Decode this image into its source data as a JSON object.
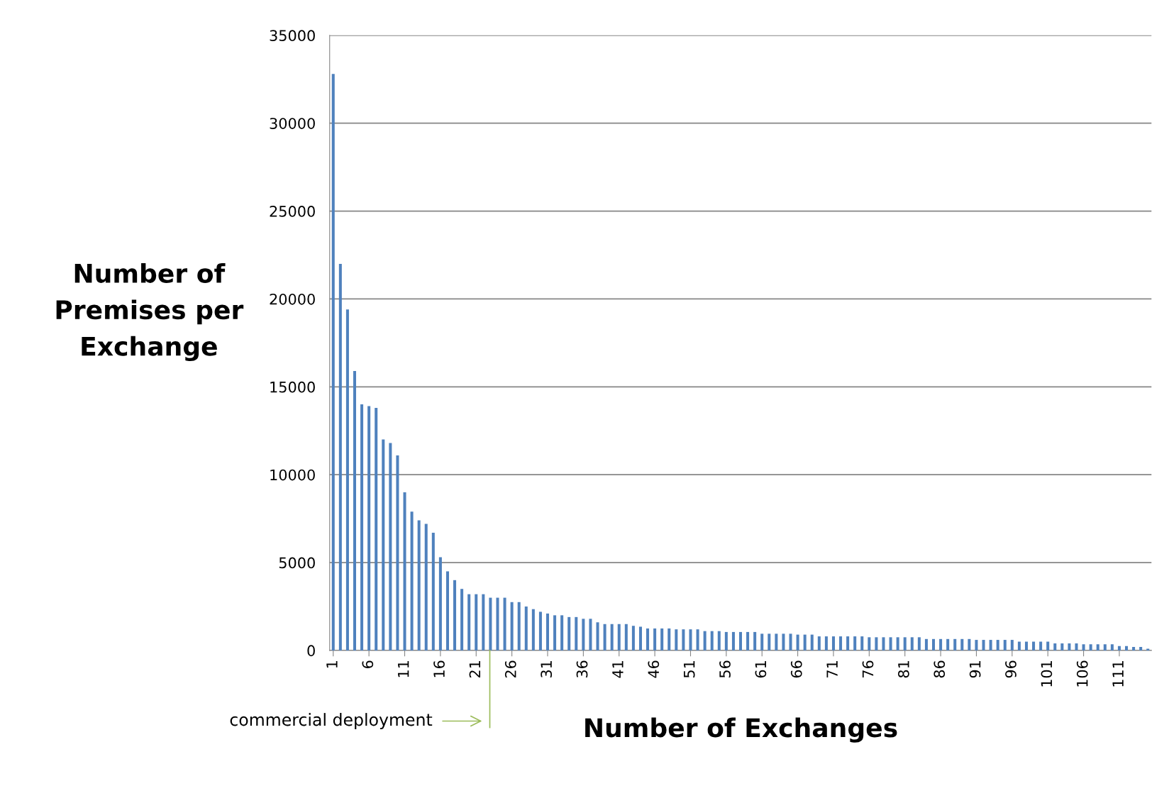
{
  "chart_data": {
    "type": "bar",
    "xlabel": "Number of Exchanges",
    "ylabel": "Number of\nPremises per\nExchange",
    "x": [
      1,
      2,
      3,
      4,
      5,
      6,
      7,
      8,
      9,
      10,
      11,
      12,
      13,
      14,
      15,
      16,
      17,
      18,
      19,
      20,
      21,
      22,
      23,
      24,
      25,
      26,
      27,
      28,
      29,
      30,
      31,
      32,
      33,
      34,
      35,
      36,
      37,
      38,
      39,
      40,
      41,
      42,
      43,
      44,
      45,
      46,
      47,
      48,
      49,
      50,
      51,
      52,
      53,
      54,
      55,
      56,
      57,
      58,
      59,
      60,
      61,
      62,
      63,
      64,
      65,
      66,
      67,
      68,
      69,
      70,
      71,
      72,
      73,
      74,
      75,
      76,
      77,
      78,
      79,
      80,
      81,
      82,
      83,
      84,
      85,
      86,
      87,
      88,
      89,
      90,
      91,
      92,
      93,
      94,
      95,
      96,
      97,
      98,
      99,
      100,
      101,
      102,
      103,
      104,
      105,
      106,
      107,
      108,
      109,
      110,
      111,
      112,
      113,
      114,
      115
    ],
    "xlim": [
      0.5,
      115.5
    ],
    "xticks": [
      1,
      6,
      11,
      16,
      21,
      26,
      31,
      36,
      41,
      46,
      51,
      56,
      61,
      66,
      71,
      76,
      81,
      86,
      91,
      96,
      101,
      106,
      111
    ],
    "values": [
      32800,
      22000,
      19400,
      15900,
      14000,
      13900,
      13800,
      12000,
      11800,
      11100,
      9000,
      7900,
      7400,
      7200,
      6700,
      5300,
      4500,
      4000,
      3500,
      3200,
      3200,
      3200,
      3000,
      3000,
      3000,
      2750,
      2750,
      2500,
      2350,
      2200,
      2100,
      2000,
      2000,
      1900,
      1900,
      1800,
      1800,
      1600,
      1500,
      1500,
      1500,
      1500,
      1400,
      1350,
      1250,
      1250,
      1250,
      1250,
      1200,
      1200,
      1200,
      1200,
      1100,
      1100,
      1100,
      1050,
      1050,
      1050,
      1050,
      1050,
      950,
      950,
      950,
      950,
      950,
      900,
      900,
      900,
      800,
      800,
      800,
      800,
      800,
      800,
      800,
      750,
      750,
      750,
      750,
      750,
      750,
      750,
      750,
      650,
      650,
      650,
      650,
      650,
      650,
      650,
      600,
      600,
      600,
      600,
      600,
      600,
      500,
      500,
      500,
      500,
      500,
      400,
      400,
      400,
      400,
      350,
      350,
      350,
      350,
      350,
      250,
      250,
      200,
      200,
      100
    ],
    "color": "#4f81bd",
    "ylim": [
      0,
      35000
    ],
    "yticks": [
      0,
      5000,
      10000,
      15000,
      20000,
      25000,
      30000,
      35000
    ],
    "grid": "y",
    "annotations": [
      "commercial deployment"
    ]
  }
}
